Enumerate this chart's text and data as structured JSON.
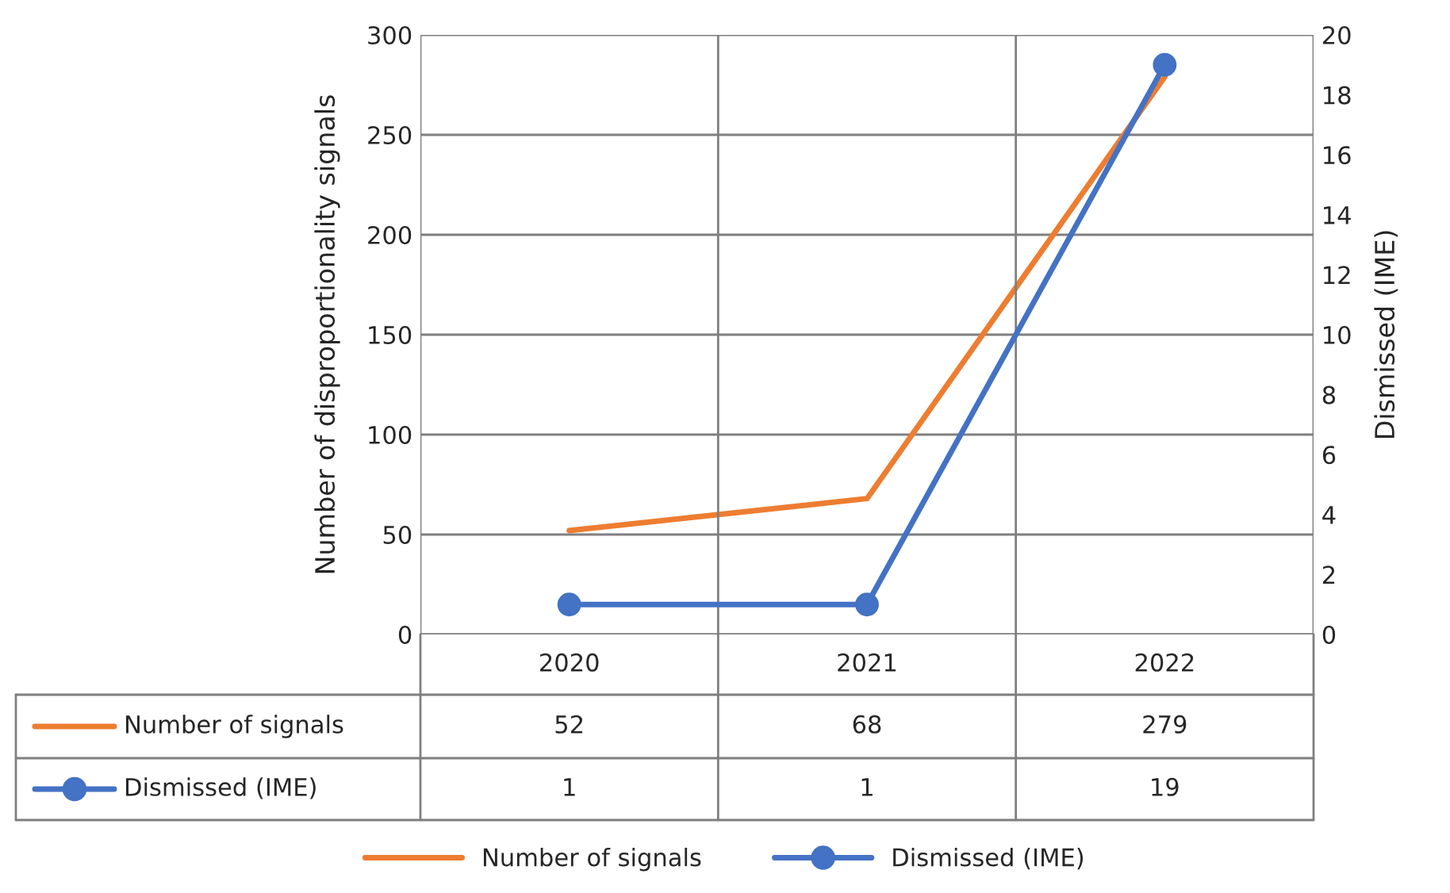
{
  "chart_data": {
    "type": "line",
    "ylabel": "Number of disproportionality signals",
    "y2label": "Dismissed (IME)",
    "categories": [
      "2020",
      "2021",
      "2022"
    ],
    "series": [
      {
        "name": "Number of signals",
        "color": "#ed7d31",
        "values": [
          52,
          68,
          279
        ],
        "marker": "none"
      },
      {
        "name": "Dismissed (IME)",
        "color": "#4472c4",
        "values": [
          1,
          1,
          19
        ],
        "axis": "y2",
        "marker": "circle"
      }
    ],
    "ylim": [
      0,
      300
    ],
    "yticks": [
      0,
      50,
      100,
      150,
      200,
      250,
      300
    ],
    "y2lim": [
      0,
      20
    ],
    "y2ticks": [
      0,
      2,
      4,
      6,
      8,
      10,
      12,
      14,
      16,
      18,
      20
    ],
    "grid": true,
    "legend": "bottom",
    "data_labels": true,
    "line_style": "solid"
  }
}
